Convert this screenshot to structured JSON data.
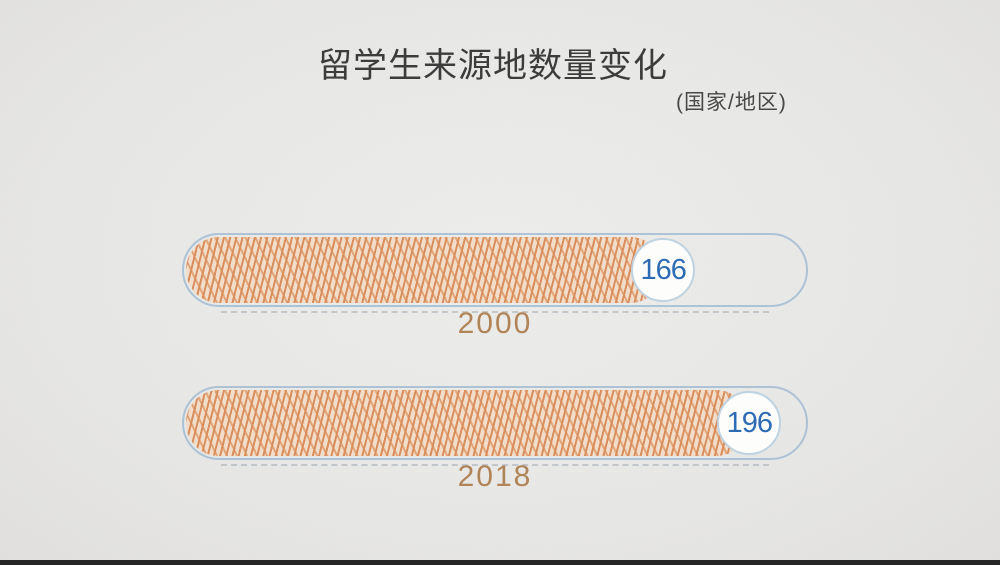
{
  "chart_data": {
    "type": "bar",
    "orientation": "horizontal",
    "title": "留学生来源地数量变化",
    "subtitle": "(国家/地区)",
    "categories": [
      "2000",
      "2018"
    ],
    "values": [
      166,
      196
    ],
    "xlim": [
      0,
      215
    ],
    "grid": false,
    "legend": false,
    "value_labels": "in-circle-badges-at-bar-end",
    "style_note": "hand-drawn sketch style, orange crosshatch bars on paper texture"
  },
  "colors": {
    "ink": "#3c3c3c",
    "subtitle_ink": "#484848",
    "bar_orange": "#d98e5e",
    "bar_orange_light": "#e3a678",
    "bar_base": "#f1ddc9",
    "track_outline": "rgba(125,162,199,0.55)",
    "badge_bg": "#fdfdfc",
    "badge_border": "#bfd2e0",
    "value_text": "#2d6bb4",
    "year_label": "#b18458",
    "footer": "#262626"
  }
}
